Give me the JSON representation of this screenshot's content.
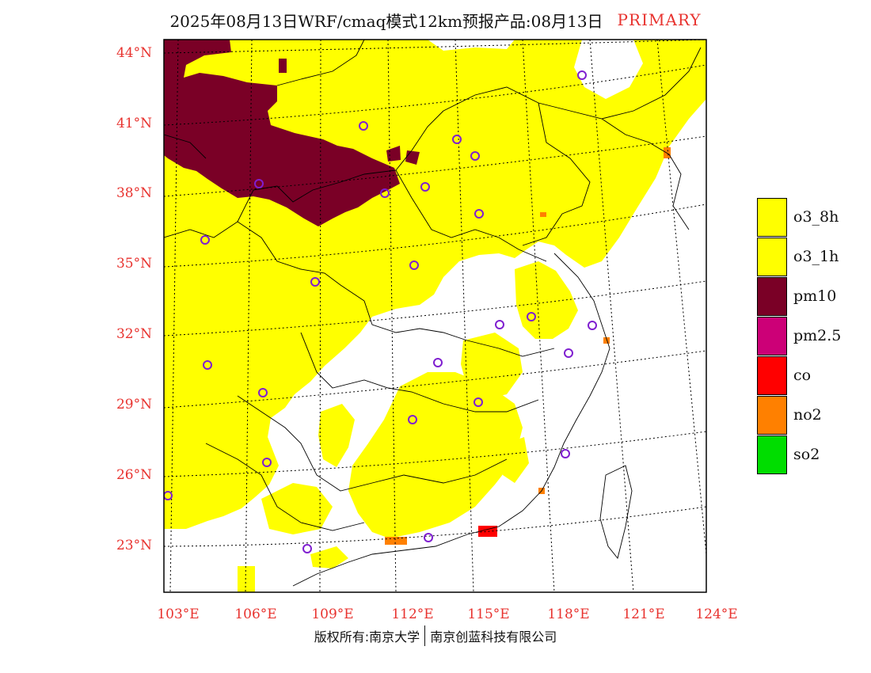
{
  "header": {
    "title": "2025年08月13日WRF/cmaq模式12km预报产品:08月13日",
    "tag": "PRIMARY"
  },
  "map": {
    "lat_labels": [
      "44°N",
      "41°N",
      "38°N",
      "35°N",
      "32°N",
      "29°N",
      "26°N",
      "23°N"
    ],
    "lon_labels": [
      "103°E",
      "106°E",
      "109°E",
      "112°E",
      "115°E",
      "118°E",
      "121°E",
      "124°E"
    ],
    "colors": {
      "o3": "#ffff00",
      "pm10": "#7a0026",
      "no2": "#ff8000",
      "co": "#ff0000",
      "city_marker": "#7f1fd0",
      "label": "#e8332f"
    }
  },
  "legend": {
    "items": [
      {
        "label": "o3_8h",
        "color": "#ffff00"
      },
      {
        "label": "o3_1h",
        "color": "#ffff00"
      },
      {
        "label": "pm10",
        "color": "#7a0026"
      },
      {
        "label": "pm2.5",
        "color": "#cc0077"
      },
      {
        "label": "co",
        "color": "#ff0000"
      },
      {
        "label": "no2",
        "color": "#ff8000"
      },
      {
        "label": "so2",
        "color": "#00dd00"
      }
    ]
  },
  "footer": {
    "copyright_left": "版权所有:南京大学",
    "copyright_right": "南京创蓝科技有限公司"
  }
}
